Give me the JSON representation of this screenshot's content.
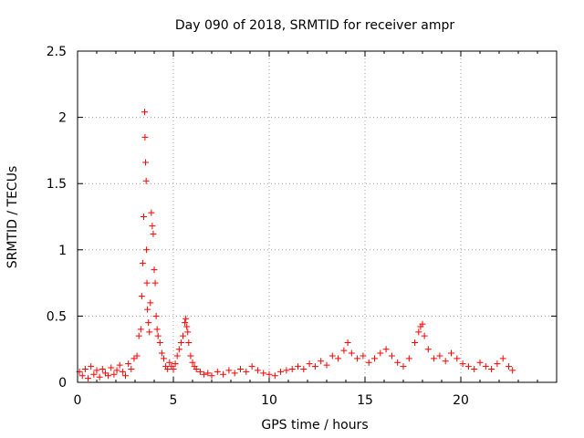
{
  "chart_data": {
    "type": "scatter",
    "title": "Day 090 of 2018, SRMTID for receiver ampr",
    "xlabel": "GPS time / hours",
    "ylabel": "SRMTID / TECUs",
    "xlim": [
      0,
      25
    ],
    "ylim": [
      0,
      2.5
    ],
    "xticks": [
      0,
      5,
      10,
      15,
      20
    ],
    "yticks": [
      0,
      0.5,
      1,
      1.5,
      2,
      2.5
    ],
    "xtick_labels": [
      "0",
      "5",
      "10",
      "15",
      "20"
    ],
    "ytick_labels": [
      "0",
      "0.5",
      "1",
      "1.5",
      "2",
      "2.5"
    ],
    "grid": true,
    "marker": "+",
    "color": "#ff0000",
    "series": [
      {
        "name": "SRMTID",
        "x": [
          0.1,
          0.25,
          0.4,
          0.55,
          0.7,
          0.85,
          1.0,
          1.15,
          1.3,
          1.45,
          1.6,
          1.75,
          1.9,
          2.05,
          2.2,
          2.35,
          2.5,
          2.65,
          2.8,
          2.95,
          3.1,
          3.2,
          3.3,
          3.35,
          3.4,
          3.45,
          3.5,
          3.52,
          3.55,
          3.58,
          3.6,
          3.62,
          3.65,
          3.7,
          3.75,
          3.8,
          3.85,
          3.9,
          3.95,
          4.0,
          4.05,
          4.1,
          4.15,
          4.2,
          4.3,
          4.4,
          4.5,
          4.6,
          4.7,
          4.8,
          4.9,
          5.0,
          5.1,
          5.2,
          5.3,
          5.4,
          5.5,
          5.6,
          5.65,
          5.7,
          5.75,
          5.8,
          5.9,
          6.0,
          6.1,
          6.2,
          6.4,
          6.6,
          6.8,
          7.0,
          7.3,
          7.6,
          7.9,
          8.2,
          8.5,
          8.8,
          9.1,
          9.4,
          9.7,
          10.0,
          10.3,
          10.6,
          10.9,
          11.2,
          11.5,
          11.8,
          12.1,
          12.4,
          12.7,
          13.0,
          13.3,
          13.6,
          13.9,
          14.1,
          14.3,
          14.6,
          14.9,
          15.2,
          15.5,
          15.8,
          16.1,
          16.4,
          16.7,
          17.0,
          17.3,
          17.6,
          17.8,
          17.9,
          18.0,
          18.1,
          18.3,
          18.6,
          18.9,
          19.2,
          19.5,
          19.8,
          20.1,
          20.4,
          20.7,
          21.0,
          21.3,
          21.6,
          21.9,
          22.2,
          22.5,
          22.7
        ],
        "y": [
          0.08,
          0.05,
          0.1,
          0.03,
          0.12,
          0.06,
          0.09,
          0.04,
          0.1,
          0.07,
          0.05,
          0.11,
          0.06,
          0.09,
          0.13,
          0.08,
          0.05,
          0.14,
          0.1,
          0.18,
          0.2,
          0.35,
          0.4,
          0.65,
          0.9,
          1.25,
          2.04,
          1.85,
          1.66,
          1.52,
          1.0,
          0.75,
          0.55,
          0.45,
          0.38,
          0.6,
          1.28,
          1.18,
          1.12,
          0.85,
          0.75,
          0.5,
          0.4,
          0.35,
          0.3,
          0.22,
          0.18,
          0.12,
          0.1,
          0.15,
          0.12,
          0.1,
          0.14,
          0.2,
          0.25,
          0.3,
          0.35,
          0.45,
          0.48,
          0.42,
          0.38,
          0.3,
          0.2,
          0.15,
          0.12,
          0.1,
          0.08,
          0.06,
          0.07,
          0.05,
          0.08,
          0.06,
          0.09,
          0.07,
          0.1,
          0.08,
          0.12,
          0.09,
          0.07,
          0.06,
          0.05,
          0.08,
          0.09,
          0.1,
          0.12,
          0.1,
          0.14,
          0.12,
          0.16,
          0.13,
          0.2,
          0.18,
          0.24,
          0.3,
          0.22,
          0.18,
          0.2,
          0.15,
          0.18,
          0.22,
          0.25,
          0.2,
          0.15,
          0.12,
          0.18,
          0.3,
          0.38,
          0.42,
          0.44,
          0.35,
          0.25,
          0.18,
          0.2,
          0.16,
          0.22,
          0.18,
          0.14,
          0.12,
          0.1,
          0.15,
          0.12,
          0.1,
          0.14,
          0.18,
          0.12,
          0.09
        ]
      }
    ]
  }
}
